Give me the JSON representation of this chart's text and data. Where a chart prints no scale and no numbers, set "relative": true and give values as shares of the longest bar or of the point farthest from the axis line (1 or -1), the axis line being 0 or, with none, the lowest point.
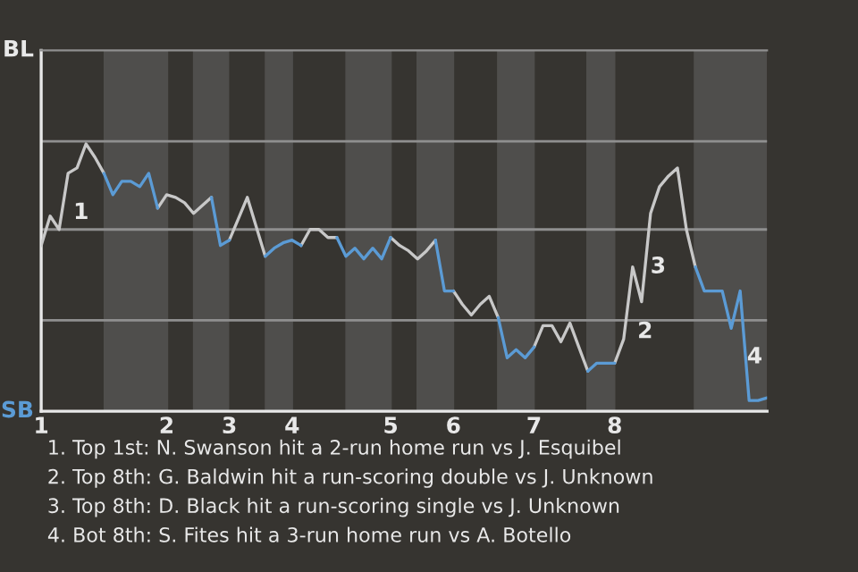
{
  "chart_data": {
    "type": "line",
    "relative": true,
    "categories": [
      "1",
      null,
      null,
      null,
      null,
      null,
      null,
      null,
      null,
      null,
      null,
      null,
      null,
      null,
      "2",
      null,
      null,
      null,
      null,
      null,
      null,
      "3",
      null,
      null,
      null,
      null,
      null,
      null,
      "4",
      null,
      null,
      null,
      null,
      null,
      null,
      null,
      null,
      null,
      null,
      "5",
      null,
      null,
      null,
      null,
      null,
      null,
      "6",
      null,
      null,
      null,
      null,
      null,
      null,
      null,
      null,
      "7",
      null,
      null,
      null,
      null,
      null,
      null,
      null,
      null,
      "8",
      null,
      null,
      null,
      null,
      null,
      null,
      null,
      null,
      null,
      null,
      null,
      null,
      null,
      null,
      null,
      null,
      null
    ],
    "marker": "none",
    "line_style": "solid",
    "ref_lines": [
      {
        "axis": "y",
        "value": 0.34,
        "color": "#8f8f8f"
      },
      {
        "axis": "y",
        "value": 0.68,
        "color": "#8f8f8f"
      },
      {
        "axis": "y",
        "value": 1.01,
        "color": "#8f8f8f"
      }
    ],
    "series": [
      {
        "color": "#c8c8c8",
        "values": [
          0.62,
          0.73,
          0.68,
          0.89,
          0.91,
          1,
          0.95,
          0.89,
          null,
          null,
          null,
          null,
          null,
          0.76,
          0.81,
          0.8,
          0.78,
          0.74,
          0.77,
          0.8,
          null,
          0.64,
          0.72,
          0.8,
          0.69,
          0.58,
          null,
          null,
          null,
          0.62,
          0.68,
          0.68,
          0.65,
          0.65,
          null,
          null,
          null,
          null,
          null,
          0.65,
          0.62,
          0.6,
          0.57,
          0.6,
          0.64,
          null,
          0.45,
          0.4,
          0.36,
          0.4,
          0.43,
          0.35,
          null,
          null,
          null,
          0.24,
          0.32,
          0.32,
          0.26,
          0.33,
          0.24,
          0.15,
          null,
          null,
          0.18,
          0.27,
          0.54,
          0.41,
          0.74,
          0.84,
          0.88,
          0.91,
          0.68,
          0.54,
          null,
          null,
          null,
          null,
          null,
          null,
          null,
          null
        ]
      },
      {
        "color": "#5b9bd5",
        "values": [
          null,
          null,
          null,
          null,
          null,
          null,
          null,
          0.89,
          0.81,
          0.86,
          0.86,
          0.84,
          0.89,
          0.76,
          null,
          null,
          null,
          null,
          null,
          0.8,
          0.62,
          0.64,
          null,
          null,
          null,
          0.58,
          0.61,
          0.63,
          0.64,
          0.62,
          null,
          null,
          null,
          0.65,
          0.58,
          0.61,
          0.57,
          0.61,
          0.57,
          0.65,
          null,
          null,
          null,
          null,
          0.64,
          0.45,
          0.45,
          null,
          null,
          null,
          null,
          0.35,
          0.2,
          0.23,
          0.2,
          0.24,
          null,
          null,
          null,
          null,
          null,
          0.15,
          0.18,
          0.18,
          0.18,
          null,
          null,
          null,
          null,
          null,
          null,
          null,
          null,
          0.54,
          0.45,
          0.45,
          0.45,
          0.31,
          0.45,
          0.04,
          0.04,
          0.05
        ]
      }
    ],
    "annotations": [
      "BL",
      "SB",
      "1",
      "2",
      "3",
      "4",
      "1. Top 1st: N. Swanson hit a 2-run home run vs J. Esquibel",
      "2. Top 8th: G. Baldwin hit a run-scoring double vs J. Unknown",
      "3. Top 8th: D. Black hit a run-scoring single vs J. Unknown",
      "4. Bot 8th: S. Fites hit a 3-run home run vs A. Botello"
    ]
  }
}
